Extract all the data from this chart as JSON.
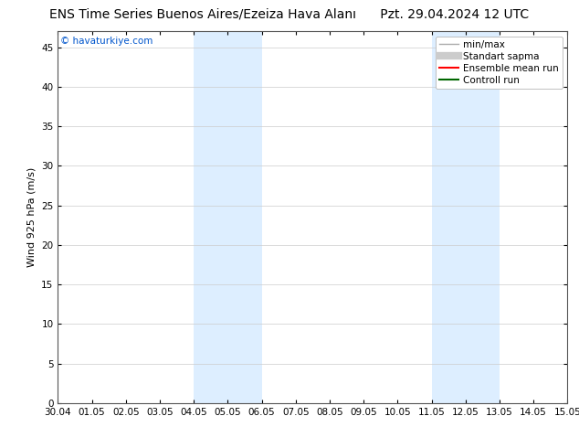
{
  "title": "ENS Time Series Buenos Aires/Ezeiza Hava Alanı",
  "date_label": "Pzt. 29.04.2024 12 UTC",
  "ylabel": "Wind 925 hPa (m/s)",
  "watermark": "© havaturkiye.com",
  "xtick_labels": [
    "30.04",
    "01.05",
    "02.05",
    "03.05",
    "04.05",
    "05.05",
    "06.05",
    "07.05",
    "08.05",
    "09.05",
    "10.05",
    "11.05",
    "12.05",
    "13.05",
    "14.05",
    "15.05"
  ],
  "ytick_values": [
    0,
    5,
    10,
    15,
    20,
    25,
    30,
    35,
    40,
    45
  ],
  "ylim": [
    0,
    47
  ],
  "xlim": [
    0,
    15
  ],
  "shaded_regions": [
    {
      "xmin": 4.0,
      "xmax": 6.0
    },
    {
      "xmin": 11.0,
      "xmax": 13.0
    }
  ],
  "shade_color": "#ddeeff",
  "shade_alpha": 1.0,
  "bg_color": "#ffffff",
  "grid_color": "#cccccc",
  "legend_items": [
    {
      "label": "min/max",
      "color": "#aaaaaa",
      "lw": 1.0,
      "ls": "-"
    },
    {
      "label": "Standart sapma",
      "color": "#cccccc",
      "lw": 6,
      "ls": "-"
    },
    {
      "label": "Ensemble mean run",
      "color": "#ff0000",
      "lw": 1.5,
      "ls": "-"
    },
    {
      "label": "Controll run",
      "color": "#006600",
      "lw": 1.5,
      "ls": "-"
    }
  ],
  "title_fontsize": 10,
  "label_fontsize": 8,
  "tick_fontsize": 7.5,
  "watermark_fontsize": 7.5,
  "watermark_color": "#0055cc"
}
